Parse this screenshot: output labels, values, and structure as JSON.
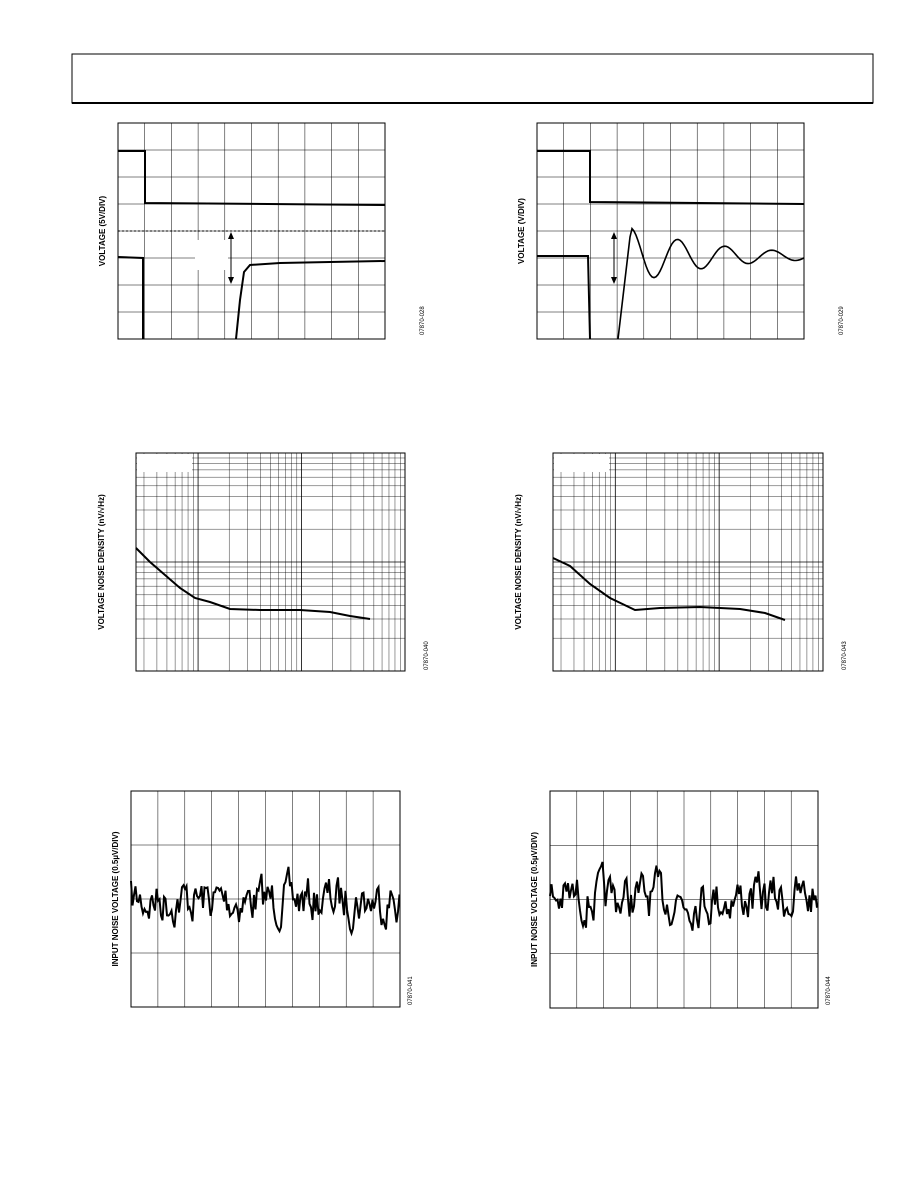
{
  "figures": [
    {
      "y_label": "VOLTAGE (5V/DIV)",
      "code": "07870-028"
    },
    {
      "y_label": "VOLTAGE (V/DIV)",
      "code": "07870-029"
    },
    {
      "y_label": "VOLTAGE NOISE DENSITY (nV/√Hz)",
      "code": "07870-040"
    },
    {
      "y_label": "VOLTAGE NOISE DENSITY (nV/√Hz)",
      "code": "07870-043"
    },
    {
      "y_label": "INPUT NOISE VOLTAGE (0.5µV/DIV)",
      "code": "07870-041"
    },
    {
      "y_label": "INPUT NOISE VOLTAGE (0.5µV/DIV)",
      "code": "07870-044"
    }
  ]
}
